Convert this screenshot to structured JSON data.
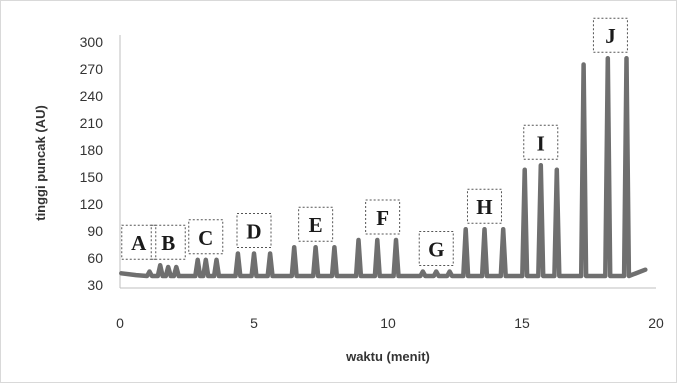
{
  "chart_data": {
    "type": "line",
    "title": "",
    "xlabel": "waktu (menit)",
    "ylabel": "tinggi puncak  (AU)",
    "xlim": [
      0,
      20
    ],
    "ylim": [
      30,
      310
    ],
    "xticks": [
      "0",
      "5",
      "10",
      "15",
      "20"
    ],
    "yticks": [
      "30",
      "60",
      "90",
      "120",
      "150",
      "180",
      "210",
      "240",
      "270",
      "300"
    ],
    "grid": false,
    "legend": "none",
    "line_color": "#6f6f6f",
    "baseline": 40,
    "peaks": [
      {
        "x": 1.1,
        "y": 45
      },
      {
        "x": 1.5,
        "y": 52
      },
      {
        "x": 1.8,
        "y": 50
      },
      {
        "x": 2.1,
        "y": 50
      },
      {
        "x": 2.9,
        "y": 58
      },
      {
        "x": 3.2,
        "y": 58
      },
      {
        "x": 3.6,
        "y": 58
      },
      {
        "x": 4.4,
        "y": 65
      },
      {
        "x": 5.0,
        "y": 65
      },
      {
        "x": 5.6,
        "y": 65
      },
      {
        "x": 6.5,
        "y": 72
      },
      {
        "x": 7.3,
        "y": 72
      },
      {
        "x": 8.0,
        "y": 72
      },
      {
        "x": 8.9,
        "y": 80
      },
      {
        "x": 9.6,
        "y": 80
      },
      {
        "x": 10.3,
        "y": 80
      },
      {
        "x": 11.3,
        "y": 45
      },
      {
        "x": 11.8,
        "y": 45
      },
      {
        "x": 12.3,
        "y": 45
      },
      {
        "x": 12.9,
        "y": 92
      },
      {
        "x": 13.6,
        "y": 92
      },
      {
        "x": 14.3,
        "y": 92
      },
      {
        "x": 15.1,
        "y": 158
      },
      {
        "x": 15.7,
        "y": 163
      },
      {
        "x": 16.3,
        "y": 158
      },
      {
        "x": 17.3,
        "y": 275
      },
      {
        "x": 18.2,
        "y": 282
      },
      {
        "x": 18.9,
        "y": 282
      }
    ],
    "annotations": [
      {
        "label": "A",
        "x": 0.7
      },
      {
        "label": "B",
        "x": 1.8
      },
      {
        "label": "C",
        "x": 3.2
      },
      {
        "label": "D",
        "x": 5.0
      },
      {
        "label": "E",
        "x": 7.3
      },
      {
        "label": "F",
        "x": 9.8
      },
      {
        "label": "G",
        "x": 11.8
      },
      {
        "label": "H",
        "x": 13.6
      },
      {
        "label": "I",
        "x": 15.7
      },
      {
        "label": "J",
        "x": 18.3
      }
    ]
  }
}
